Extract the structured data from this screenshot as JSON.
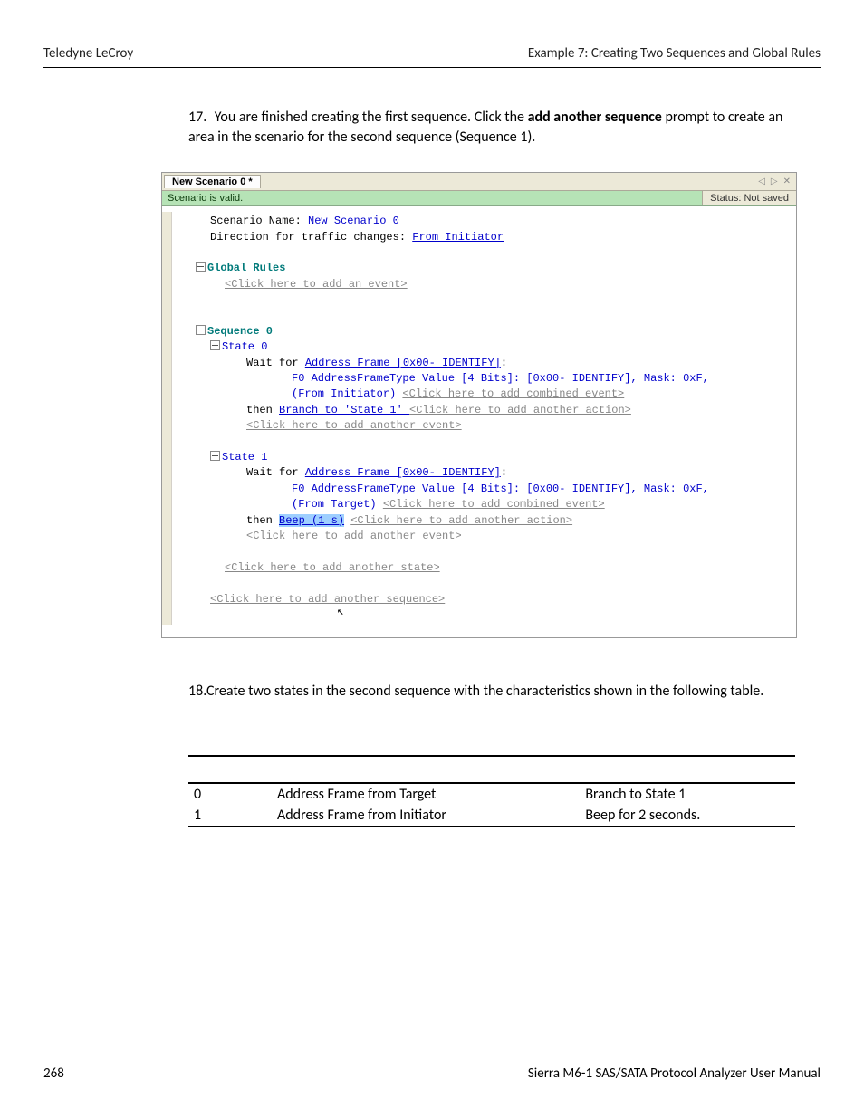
{
  "header": {
    "left": "Teledyne LeCroy",
    "right": "Example 7: Creating Two Sequences and Global Rules"
  },
  "step17": {
    "num": "17.",
    "text_before": "You are finished creating the first sequence. Click the ",
    "bold": "add another sequence",
    "text_after": " prompt to create an area in the scenario for the second sequence (Sequence 1)."
  },
  "screenshot": {
    "tab_title": "New Scenario 0 *",
    "tab_icons": {
      "prev": "◁",
      "next": "▷",
      "close": "✕"
    },
    "status_valid": "Scenario is valid.",
    "status_notsaved": "Status: Not saved",
    "colors": {
      "status_bg": "#b6e3b6",
      "tabbar_bg": "#ece9d8",
      "link_blue": "#0000cc",
      "link_grey": "#888888",
      "teal": "#007a7a",
      "highlight": "#9ecfff"
    },
    "code": {
      "scenario_name_label": "Scenario Name: ",
      "scenario_name_value": "New Scenario 0",
      "direction_label": "Direction for traffic changes: ",
      "direction_value": "From Initiator",
      "global_rules": "Global Rules",
      "click_add_event": "<Click here to add an event>",
      "sequence0": "Sequence 0",
      "state0": "State 0",
      "wait_for": "Wait for ",
      "addr_frame": "Address Frame [0x00- IDENTIFY]",
      "f0_line": "F0  AddressFrameType Value [4 Bits]: [0x00- IDENTIFY], Mask: 0xF,",
      "from_initiator": "(From Initiator) ",
      "click_combined": "<Click here to add combined event>",
      "then": "then ",
      "branch_state1": "Branch to 'State 1' ",
      "click_another_action": "<Click here to add another action>",
      "click_another_event": "<Click here to add another event>",
      "state1": "State 1",
      "from_target": "(From Target) ",
      "beep": "Beep (1 s)",
      "click_add_state": "<Click here to add another state>",
      "click_add_sequence": "<Click here to add another sequence>"
    }
  },
  "step18": {
    "num": "18.",
    "text": "Create two states in the second sequence with the characteristics shown in the following table."
  },
  "table": {
    "head": {
      "state": "",
      "event": "",
      "action": ""
    },
    "rows": [
      {
        "state": "0",
        "event": "Address Frame from Target",
        "action": "Branch to State 1"
      },
      {
        "state": "1",
        "event": "Address Frame from Initiator",
        "action": "Beep for 2 seconds."
      }
    ]
  },
  "footer": {
    "page": "268",
    "manual": "Sierra M6-1 SAS/SATA Protocol Analyzer User Manual"
  }
}
